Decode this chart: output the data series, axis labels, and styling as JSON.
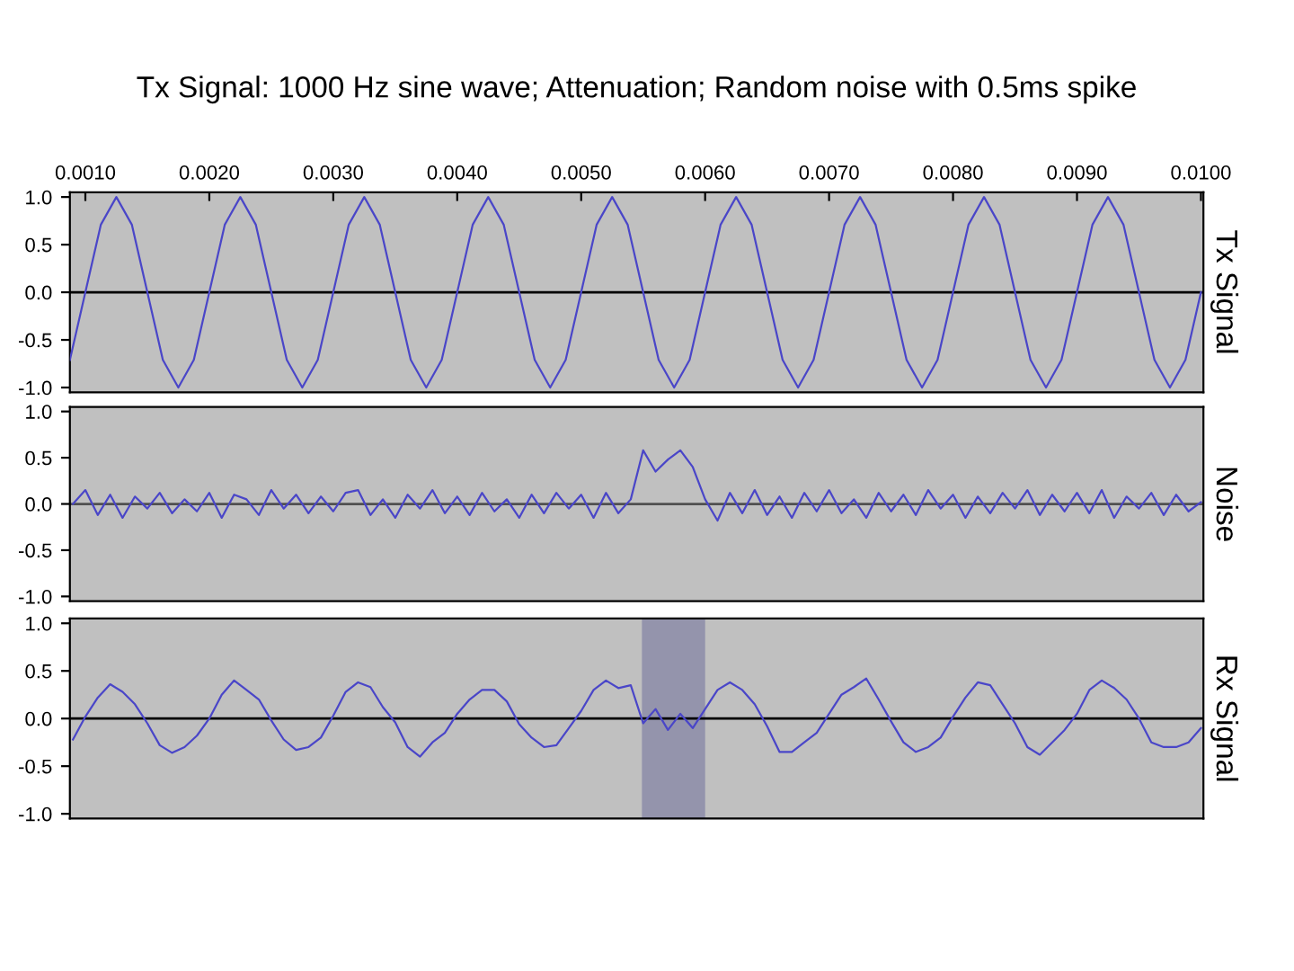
{
  "chart_data": [
    {
      "type": "line",
      "title": "Tx Signal: 1000 Hz sine wave; Attenuation; Random noise with 0.5ms spike",
      "ylabel": "Tx Signal",
      "xlim": [
        0.000875,
        0.01002
      ],
      "xticks": [
        {
          "value": 0.001,
          "label": "0.0010"
        },
        {
          "value": 0.002,
          "label": "0.0020"
        },
        {
          "value": 0.003,
          "label": "0.0030"
        },
        {
          "value": 0.004,
          "label": "0.0040"
        },
        {
          "value": 0.005,
          "label": "0.0050"
        },
        {
          "value": 0.006,
          "label": "0.0060"
        },
        {
          "value": 0.007,
          "label": "0.0070"
        },
        {
          "value": 0.008,
          "label": "0.0080"
        },
        {
          "value": 0.009,
          "label": "0.0090"
        },
        {
          "value": 0.01,
          "label": "0.0100"
        }
      ],
      "ylim": [
        -1.05,
        1.05
      ],
      "yticks": [
        {
          "value": 1,
          "label": "1.0"
        },
        {
          "value": 0.5,
          "label": "0.5"
        },
        {
          "value": 0,
          "label": "0.0"
        },
        {
          "value": -0.5,
          "label": "-0.5"
        },
        {
          "value": -1,
          "label": "-1.0"
        }
      ],
      "grid": false,
      "legend": false,
      "ref_lines": [
        {
          "axis": "y",
          "value": 0,
          "color": "#000000"
        }
      ],
      "series": [
        {
          "color": "#4a46c8",
          "x": [
            0.000875,
            0.001,
            0.001125,
            0.00125,
            0.001375,
            0.0015,
            0.001625,
            0.00175,
            0.001875,
            0.002,
            0.002125,
            0.00225,
            0.002375,
            0.0025,
            0.002625,
            0.00275,
            0.002875,
            0.003,
            0.003125,
            0.00325,
            0.003375,
            0.0035,
            0.003625,
            0.00375,
            0.003875,
            0.004,
            0.004125,
            0.00425,
            0.004375,
            0.0045,
            0.004625,
            0.00475,
            0.004875,
            0.005,
            0.005125,
            0.00525,
            0.005375,
            0.0055,
            0.005625,
            0.00575,
            0.005875,
            0.006,
            0.006125,
            0.00625,
            0.006375,
            0.0065,
            0.006625,
            0.00675,
            0.006875,
            0.007,
            0.007125,
            0.00725,
            0.007375,
            0.0075,
            0.007625,
            0.00775,
            0.007875,
            0.008,
            0.008125,
            0.00825,
            0.008375,
            0.0085,
            0.008625,
            0.00875,
            0.008875,
            0.009,
            0.009125,
            0.00925,
            0.009375,
            0.0095,
            0.009625,
            0.00975,
            0.009875,
            0.01
          ],
          "values": [
            -0.71,
            0,
            0.71,
            1,
            0.71,
            0,
            -0.71,
            -1,
            -0.71,
            0,
            0.71,
            1,
            0.71,
            0,
            -0.71,
            -1,
            -0.71,
            0,
            0.71,
            1,
            0.71,
            0,
            -0.71,
            -1,
            -0.71,
            0,
            0.71,
            1,
            0.71,
            0,
            -0.71,
            -1,
            -0.71,
            0,
            0.71,
            1,
            0.71,
            0,
            -0.71,
            -1,
            -0.71,
            0,
            0.71,
            1,
            0.71,
            0,
            -0.71,
            -1,
            -0.71,
            0,
            0.71,
            1,
            0.71,
            0,
            -0.71,
            -1,
            -0.71,
            0,
            0.71,
            1,
            0.71,
            0,
            -0.71,
            -1,
            -0.71,
            0,
            0.71,
            1,
            0.71,
            0,
            -0.71,
            -1,
            -0.71,
            0
          ]
        }
      ]
    },
    {
      "type": "line",
      "ylabel": "Noise",
      "xlim": [
        0.000875,
        0.01002
      ],
      "tick_labels": "y",
      "ylim": [
        -1.05,
        1.05
      ],
      "yticks": [
        {
          "value": 1,
          "label": "1.0"
        },
        {
          "value": 0.5,
          "label": "0.5"
        },
        {
          "value": 0,
          "label": "0.0"
        },
        {
          "value": -0.5,
          "label": "-0.5"
        },
        {
          "value": -1,
          "label": "-1.0"
        }
      ],
      "grid": false,
      "legend": false,
      "ref_lines": [
        {
          "axis": "y",
          "value": 0,
          "color": "#505050"
        }
      ],
      "series": [
        {
          "color": "#4a46c8",
          "x": [
            0.0009,
            0.001,
            0.0011,
            0.0012,
            0.0013,
            0.0014,
            0.0015,
            0.0016,
            0.0017,
            0.0018,
            0.0019,
            0.002,
            0.0021,
            0.0022,
            0.0023,
            0.0024,
            0.0025,
            0.0026,
            0.0027,
            0.0028,
            0.0029,
            0.003,
            0.0031,
            0.0032,
            0.0033,
            0.0034,
            0.0035,
            0.0036,
            0.0037,
            0.0038,
            0.0039,
            0.004,
            0.0041,
            0.0042,
            0.0043,
            0.0044,
            0.0045,
            0.0046,
            0.0047,
            0.0048,
            0.0049,
            0.005,
            0.0051,
            0.0052,
            0.0053,
            0.0054,
            0.0055,
            0.0056,
            0.0057,
            0.0058,
            0.0059,
            0.006,
            0.0061,
            0.0062,
            0.0063,
            0.0064,
            0.0065,
            0.0066,
            0.0067,
            0.0068,
            0.0069,
            0.007,
            0.0071,
            0.0072,
            0.0073,
            0.0074,
            0.0075,
            0.0076,
            0.0077,
            0.0078,
            0.0079,
            0.008,
            0.0081,
            0.0082,
            0.0083,
            0.0084,
            0.0085,
            0.0086,
            0.0087,
            0.0088,
            0.0089,
            0.009,
            0.0091,
            0.0092,
            0.0093,
            0.0094,
            0.0095,
            0.0096,
            0.0097,
            0.0098,
            0.0099,
            0.01
          ],
          "values": [
            0,
            0.15,
            -0.12,
            0.1,
            -0.15,
            0.08,
            -0.05,
            0.12,
            -0.1,
            0.05,
            -0.08,
            0.12,
            -0.15,
            0.1,
            0.05,
            -0.12,
            0.15,
            -0.05,
            0.1,
            -0.1,
            0.08,
            -0.08,
            0.12,
            0.15,
            -0.12,
            0.05,
            -0.15,
            0.1,
            -0.05,
            0.15,
            -0.1,
            0.08,
            -0.12,
            0.12,
            -0.08,
            0.05,
            -0.15,
            0.1,
            -0.1,
            0.12,
            -0.05,
            0.1,
            -0.15,
            0.12,
            -0.1,
            0.05,
            0.58,
            0.35,
            0.48,
            0.58,
            0.4,
            0.05,
            -0.18,
            0.12,
            -0.1,
            0.15,
            -0.12,
            0.08,
            -0.15,
            0.12,
            -0.08,
            0.15,
            -0.1,
            0.05,
            -0.15,
            0.12,
            -0.08,
            0.1,
            -0.12,
            0.15,
            -0.05,
            0.1,
            -0.15,
            0.08,
            -0.1,
            0.12,
            -0.05,
            0.15,
            -0.12,
            0.1,
            -0.08,
            0.12,
            -0.1,
            0.15,
            -0.15,
            0.08,
            -0.05,
            0.12,
            -0.12,
            0.1,
            -0.08,
            0.02
          ]
        }
      ]
    },
    {
      "type": "line",
      "ylabel": "Rx Signal",
      "xlim": [
        0.000875,
        0.01002
      ],
      "tick_labels": "y",
      "ylim": [
        -1.05,
        1.05
      ],
      "yticks": [
        {
          "value": 1,
          "label": "1.0"
        },
        {
          "value": 0.5,
          "label": "0.5"
        },
        {
          "value": 0,
          "label": "0.0"
        },
        {
          "value": -0.5,
          "label": "-0.5"
        },
        {
          "value": -1,
          "label": "-1.0"
        }
      ],
      "grid": false,
      "legend": false,
      "ref_lines": [
        {
          "axis": "y",
          "value": 0,
          "color": "#000000"
        }
      ],
      "bands": [
        {
          "axis": "x",
          "from": 0.00549,
          "to": 0.006,
          "color": "#9494ac"
        }
      ],
      "series": [
        {
          "color": "#4a46c8",
          "x": [
            0.0009,
            0.001,
            0.0011,
            0.0012,
            0.0013,
            0.0014,
            0.0015,
            0.0016,
            0.0017,
            0.0018,
            0.0019,
            0.002,
            0.0021,
            0.0022,
            0.0023,
            0.0024,
            0.0025,
            0.0026,
            0.0027,
            0.0028,
            0.0029,
            0.003,
            0.0031,
            0.0032,
            0.0033,
            0.0034,
            0.0035,
            0.0036,
            0.0037,
            0.0038,
            0.0039,
            0.004,
            0.0041,
            0.0042,
            0.0043,
            0.0044,
            0.0045,
            0.0046,
            0.0047,
            0.0048,
            0.0049,
            0.005,
            0.0051,
            0.0052,
            0.0053,
            0.0054,
            0.0055,
            0.0056,
            0.0057,
            0.0058,
            0.0059,
            0.006,
            0.0061,
            0.0062,
            0.0063,
            0.0064,
            0.0065,
            0.0066,
            0.0067,
            0.0068,
            0.0069,
            0.007,
            0.0071,
            0.0072,
            0.0073,
            0.0074,
            0.0075,
            0.0076,
            0.0077,
            0.0078,
            0.0079,
            0.008,
            0.0081,
            0.0082,
            0.0083,
            0.0084,
            0.0085,
            0.0086,
            0.0087,
            0.0088,
            0.0089,
            0.009,
            0.0091,
            0.0092,
            0.0093,
            0.0094,
            0.0095,
            0.0096,
            0.0097,
            0.0098,
            0.0099,
            0.01
          ],
          "values": [
            -0.22,
            0.02,
            0.22,
            0.36,
            0.28,
            0.15,
            -0.05,
            -0.28,
            -0.36,
            -0.3,
            -0.18,
            0,
            0.25,
            0.4,
            0.3,
            0.2,
            -0.02,
            -0.22,
            -0.33,
            -0.3,
            -0.2,
            0.03,
            0.28,
            0.38,
            0.33,
            0.12,
            -0.04,
            -0.3,
            -0.4,
            -0.25,
            -0.15,
            0.05,
            0.2,
            0.3,
            0.3,
            0.18,
            -0.06,
            -0.2,
            -0.3,
            -0.28,
            -0.1,
            0.08,
            0.3,
            0.4,
            0.32,
            0.35,
            -0.05,
            0.1,
            -0.12,
            0.05,
            -0.1,
            0.1,
            0.3,
            0.38,
            0.3,
            0.15,
            -0.08,
            -0.35,
            -0.35,
            -0.25,
            -0.15,
            0.05,
            0.25,
            0.33,
            0.42,
            0.2,
            -0.03,
            -0.25,
            -0.35,
            -0.3,
            -0.2,
            0.02,
            0.22,
            0.38,
            0.35,
            0.15,
            -0.05,
            -0.3,
            -0.38,
            -0.25,
            -0.12,
            0.05,
            0.3,
            0.4,
            0.32,
            0.2,
            0,
            -0.25,
            -0.3,
            -0.3,
            -0.25,
            -0.1
          ]
        }
      ]
    }
  ]
}
